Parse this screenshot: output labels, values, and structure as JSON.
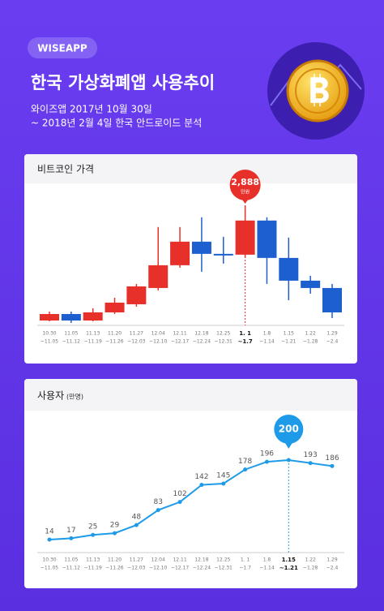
{
  "header": {
    "badge": "WISEAPP",
    "title": "한국 가상화폐앱 사용추이",
    "subtitle": [
      "와이즈앱 2017년 10월 30일",
      "~ 2018년 2월 4일 한국 안드로이드 분석"
    ]
  },
  "chart_data": [
    {
      "type": "candlestick",
      "title": "비트코인 가격",
      "categories": [
        [
          "10.30",
          "~11.05"
        ],
        [
          "11.05",
          "~11.12"
        ],
        [
          "11.13",
          "~11.19"
        ],
        [
          "11.20",
          "~11.26"
        ],
        [
          "11.27",
          "~12.03"
        ],
        [
          "12.04",
          "~12.10"
        ],
        [
          "12.11",
          "~12.17"
        ],
        [
          "12.18",
          "~12.24"
        ],
        [
          "12.25",
          "~12.31"
        ],
        [
          "1. 1",
          "~1.7"
        ],
        [
          "1.8",
          "~1.14"
        ],
        [
          "1.15",
          "~1.21"
        ],
        [
          "1.22",
          "~1.28"
        ],
        [
          "1.29",
          "~2.4"
        ]
      ],
      "open": [
        620,
        748,
        620,
        780,
        940,
        1260,
        1708,
        2172,
        1932,
        1916,
        2588,
        1852,
        1404,
        1260
      ],
      "high": [
        796,
        796,
        860,
        1068,
        1340,
        2460,
        2460,
        2652,
        2268,
        2888,
        2652,
        2252,
        1500,
        1340
      ],
      "low": [
        604,
        572,
        604,
        748,
        892,
        1212,
        1660,
        1580,
        1740,
        1852,
        1340,
        1020,
        1148,
        668
      ],
      "close": [
        748,
        620,
        780,
        972,
        1292,
        1708,
        2172,
        1932,
        1900,
        2588,
        1852,
        1404,
        1260,
        780
      ],
      "up_color": "#e8302a",
      "down_color": "#1d5fcf",
      "highlight": 9,
      "callout": {
        "index": 9,
        "label": "2,888",
        "unit": "만원"
      }
    },
    {
      "type": "line",
      "title": "사용자",
      "unit": "(만명)",
      "categories": [
        [
          "10.30",
          "~11.05"
        ],
        [
          "11.05",
          "~11.12"
        ],
        [
          "11.13",
          "~11.19"
        ],
        [
          "11.20",
          "~11.26"
        ],
        [
          "11.27",
          "~12.03"
        ],
        [
          "12.04",
          "~12.10"
        ],
        [
          "12.11",
          "~12.17"
        ],
        [
          "12.18",
          "~12.24"
        ],
        [
          "12.25",
          "~12.31"
        ],
        [
          "1. 1",
          "~1.7"
        ],
        [
          "1.8",
          "~1.14"
        ],
        [
          "1.15",
          "~1.21"
        ],
        [
          "1.22",
          "~1.28"
        ],
        [
          "1.29",
          "~2.4"
        ]
      ],
      "values": [
        14,
        17,
        25,
        29,
        48,
        83,
        102,
        142,
        145,
        178,
        196,
        200,
        193,
        186
      ],
      "color": "#1e9be8",
      "highlight": 11
    }
  ]
}
